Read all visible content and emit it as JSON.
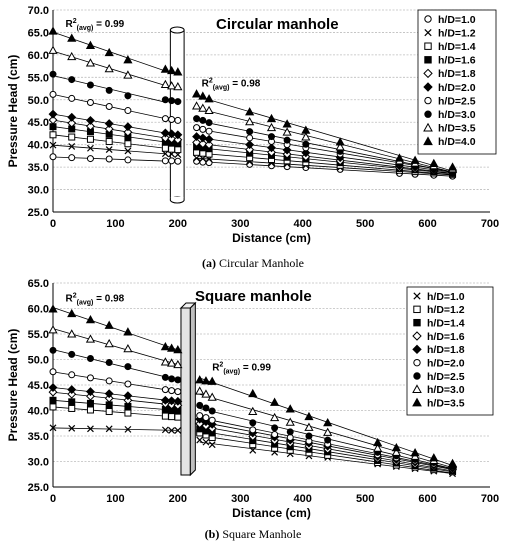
{
  "chart_data": [
    {
      "type": "scatter",
      "title": "Circular manhole",
      "caption_label": "(a)",
      "caption_text": "Circular Manhole",
      "xlabel": "Distance (cm)",
      "ylabel": "Pressure Head (cm)",
      "xlim": [
        0,
        700
      ],
      "ylim": [
        25.0,
        70.0
      ],
      "xticks": [
        "0",
        "100",
        "200",
        "300",
        "400",
        "500",
        "600",
        "700"
      ],
      "yticks": [
        "25.0",
        "30.0",
        "35.0",
        "40.0",
        "45.0",
        "50.0",
        "55.0",
        "60.0",
        "65.0",
        "70.0"
      ],
      "grid": "horizontal",
      "legend_position": "top-right",
      "manhole_shape": "cylinder",
      "manhole_x": [
        188,
        210
      ],
      "annotations": [
        {
          "text_base": "R",
          "text_sup": "2",
          "text_sub": "(avg)",
          "text_rest": " = 0.99",
          "x": 20,
          "y": 66.2
        },
        {
          "text_base": "R",
          "text_sup": "2",
          "text_sub": "(avg)",
          "text_rest": " = 0.98",
          "x": 238,
          "y": 53.0
        }
      ],
      "x": [
        0,
        30,
        60,
        90,
        120,
        180,
        190,
        200,
        230,
        240,
        250,
        315,
        350,
        375,
        405,
        460,
        555,
        580,
        610,
        640
      ],
      "series": [
        {
          "name": "h/D=1.0",
          "marker": "circle-open",
          "values": [
            37.3,
            37.1,
            36.9,
            36.8,
            36.6,
            36.4,
            36.4,
            36.3,
            36.3,
            36.1,
            36.0,
            35.6,
            35.3,
            35.1,
            34.9,
            34.5,
            33.6,
            33.4,
            33.2,
            33.0
          ]
        },
        {
          "name": "h/D=1.2",
          "marker": "x",
          "values": [
            39.9,
            39.6,
            39.2,
            38.9,
            38.6,
            38.0,
            37.9,
            37.8,
            37.0,
            36.9,
            36.8,
            36.2,
            35.9,
            35.7,
            35.4,
            34.9,
            34.0,
            33.8,
            33.5,
            33.3
          ]
        },
        {
          "name": "h/D=1.4",
          "marker": "square-open",
          "values": [
            42.2,
            41.7,
            41.2,
            40.7,
            40.2,
            39.2,
            39.0,
            38.9,
            38.3,
            38.1,
            37.9,
            37.1,
            36.7,
            36.4,
            36.0,
            35.4,
            34.3,
            34.0,
            33.7,
            33.4
          ]
        },
        {
          "name": "h/D=1.6",
          "marker": "square-filled",
          "values": [
            44.0,
            43.5,
            42.9,
            42.3,
            41.7,
            40.6,
            40.4,
            40.2,
            39.5,
            39.3,
            39.1,
            38.1,
            37.6,
            37.2,
            36.8,
            36.0,
            34.7,
            34.4,
            34.0,
            33.6
          ]
        },
        {
          "name": "h/D=1.8",
          "marker": "diamond-open",
          "values": [
            45.5,
            44.8,
            44.1,
            43.5,
            42.8,
            41.5,
            41.3,
            41.1,
            40.5,
            40.2,
            40.0,
            38.9,
            38.3,
            37.9,
            37.3,
            36.4,
            34.9,
            34.6,
            34.2,
            33.8
          ]
        },
        {
          "name": "h/D=2.0",
          "marker": "diamond-filled",
          "values": [
            46.8,
            46.1,
            45.4,
            44.7,
            44.0,
            42.6,
            42.4,
            42.2,
            41.8,
            41.5,
            41.2,
            40.0,
            39.3,
            38.8,
            38.2,
            37.1,
            35.3,
            35.0,
            34.5,
            34.0
          ]
        },
        {
          "name": "h/D=2.5",
          "marker": "circle-open",
          "values": [
            51.2,
            50.3,
            49.4,
            48.5,
            47.6,
            45.8,
            45.6,
            45.4,
            43.8,
            43.4,
            43.0,
            41.5,
            40.7,
            40.0,
            39.3,
            37.9,
            35.7,
            35.4,
            34.8,
            34.3
          ]
        },
        {
          "name": "h/D=3.0",
          "marker": "circle-filled",
          "values": [
            55.7,
            54.5,
            53.3,
            52.1,
            50.9,
            50.0,
            49.8,
            49.6,
            45.8,
            45.4,
            44.9,
            42.9,
            41.8,
            41.0,
            40.1,
            38.5,
            35.9,
            35.5,
            35.0,
            34.4
          ]
        },
        {
          "name": "h/D=3.5",
          "marker": "triangle-open",
          "values": [
            61.0,
            59.6,
            58.2,
            56.9,
            55.5,
            53.4,
            53.1,
            52.9,
            48.6,
            48.1,
            47.6,
            45.1,
            43.8,
            42.8,
            41.7,
            39.5,
            36.4,
            35.9,
            35.3,
            34.6
          ]
        },
        {
          "name": "h/D=4.0",
          "marker": "triangle-filled",
          "values": [
            65.3,
            63.7,
            62.1,
            60.5,
            58.9,
            56.8,
            56.5,
            56.2,
            51.3,
            50.8,
            50.2,
            47.3,
            45.8,
            44.6,
            43.2,
            40.6,
            37.0,
            36.5,
            35.8,
            35.0
          ]
        }
      ]
    },
    {
      "type": "scatter",
      "title": "Square manhole",
      "caption_label": "(b)",
      "caption_text": "Square Manhole",
      "xlabel": "Distance (cm)",
      "ylabel": "Pressure Head (cm)",
      "xlim": [
        0,
        700
      ],
      "ylim": [
        25.0,
        65.0
      ],
      "xticks": [
        "0",
        "100",
        "200",
        "300",
        "400",
        "500",
        "600",
        "700"
      ],
      "yticks": [
        "25.0",
        "30.0",
        "35.0",
        "40.0",
        "45.0",
        "50.0",
        "55.0",
        "60.0",
        "65.0"
      ],
      "grid": "horizontal",
      "legend_position": "top-right",
      "manhole_shape": "box",
      "manhole_x": [
        205,
        228
      ],
      "annotations": [
        {
          "text_base": "R",
          "text_sup": "2",
          "text_sub": "(avg)",
          "text_rest": " = 0.98",
          "x": 20,
          "y": 61.4
        },
        {
          "text_base": "R",
          "text_sup": "2",
          "text_sub": "(avg)",
          "text_rest": " = 0.99",
          "x": 255,
          "y": 47.8
        }
      ],
      "x": [
        0,
        30,
        60,
        90,
        120,
        180,
        190,
        200,
        235,
        245,
        255,
        320,
        355,
        380,
        410,
        440,
        520,
        550,
        580,
        610,
        640
      ],
      "series": [
        {
          "name": "h/D=1.0",
          "marker": "x",
          "values": [
            36.6,
            36.5,
            36.4,
            36.4,
            36.3,
            36.2,
            36.1,
            36.1,
            34.2,
            33.8,
            33.3,
            32.2,
            31.8,
            31.5,
            31.1,
            30.8,
            29.5,
            29.0,
            28.6,
            28.1,
            27.6
          ]
        },
        {
          "name": "h/D=1.2",
          "marker": "square-open",
          "values": [
            40.7,
            40.4,
            40.1,
            39.8,
            39.5,
            38.9,
            38.8,
            38.7,
            35.6,
            35.2,
            34.7,
            33.3,
            32.6,
            32.2,
            31.7,
            31.2,
            29.8,
            29.3,
            28.9,
            28.4,
            28.0
          ]
        },
        {
          "name": "h/D=1.4",
          "marker": "square-filled",
          "values": [
            42.0,
            41.7,
            41.4,
            41.1,
            40.8,
            40.2,
            40.1,
            40.0,
            36.4,
            36.0,
            35.6,
            34.1,
            33.4,
            32.9,
            32.4,
            31.9,
            30.2,
            29.7,
            29.2,
            28.7,
            28.2
          ]
        },
        {
          "name": "h/D=1.6",
          "marker": "diamond-open",
          "values": [
            43.6,
            43.2,
            42.8,
            42.4,
            42.0,
            41.3,
            41.1,
            41.0,
            37.4,
            37.0,
            36.5,
            34.9,
            34.1,
            33.6,
            33.0,
            32.4,
            30.6,
            30.0,
            29.5,
            29.0,
            28.4
          ]
        },
        {
          "name": "h/D=1.8",
          "marker": "diamond-filled",
          "values": [
            44.5,
            44.1,
            43.7,
            43.3,
            42.9,
            42.0,
            41.9,
            41.8,
            38.3,
            37.8,
            37.3,
            35.6,
            34.8,
            34.2,
            33.6,
            33.0,
            31.0,
            30.4,
            29.9,
            29.3,
            28.7
          ]
        },
        {
          "name": "h/D=2.0",
          "marker": "circle-open",
          "values": [
            47.6,
            47.0,
            46.4,
            45.8,
            45.2,
            44.1,
            43.9,
            43.7,
            39.0,
            38.6,
            38.1,
            36.2,
            35.3,
            34.7,
            34.0,
            33.4,
            31.3,
            30.7,
            30.1,
            29.5,
            28.9
          ]
        },
        {
          "name": "h/D=2.5",
          "marker": "circle-filled",
          "values": [
            51.8,
            51.0,
            50.2,
            49.4,
            48.6,
            46.5,
            46.2,
            46.0,
            41.0,
            40.5,
            39.9,
            37.6,
            36.6,
            35.8,
            35.0,
            34.2,
            31.8,
            31.1,
            30.4,
            29.8,
            29.1
          ]
        },
        {
          "name": "h/D=3.0",
          "marker": "triangle-open",
          "values": [
            55.8,
            55.0,
            54.0,
            53.1,
            52.1,
            49.5,
            49.3,
            49.0,
            43.8,
            43.2,
            42.6,
            39.8,
            38.6,
            37.7,
            36.7,
            35.7,
            32.6,
            31.8,
            31.0,
            30.2,
            29.4
          ]
        },
        {
          "name": "h/D=3.5",
          "marker": "triangle-filled",
          "values": [
            59.9,
            59.0,
            57.8,
            56.7,
            55.4,
            52.5,
            52.2,
            51.9,
            46.0,
            45.8,
            45.7,
            43.3,
            41.6,
            40.3,
            38.8,
            37.6,
            33.7,
            32.7,
            31.7,
            30.7,
            29.6
          ]
        }
      ]
    }
  ]
}
